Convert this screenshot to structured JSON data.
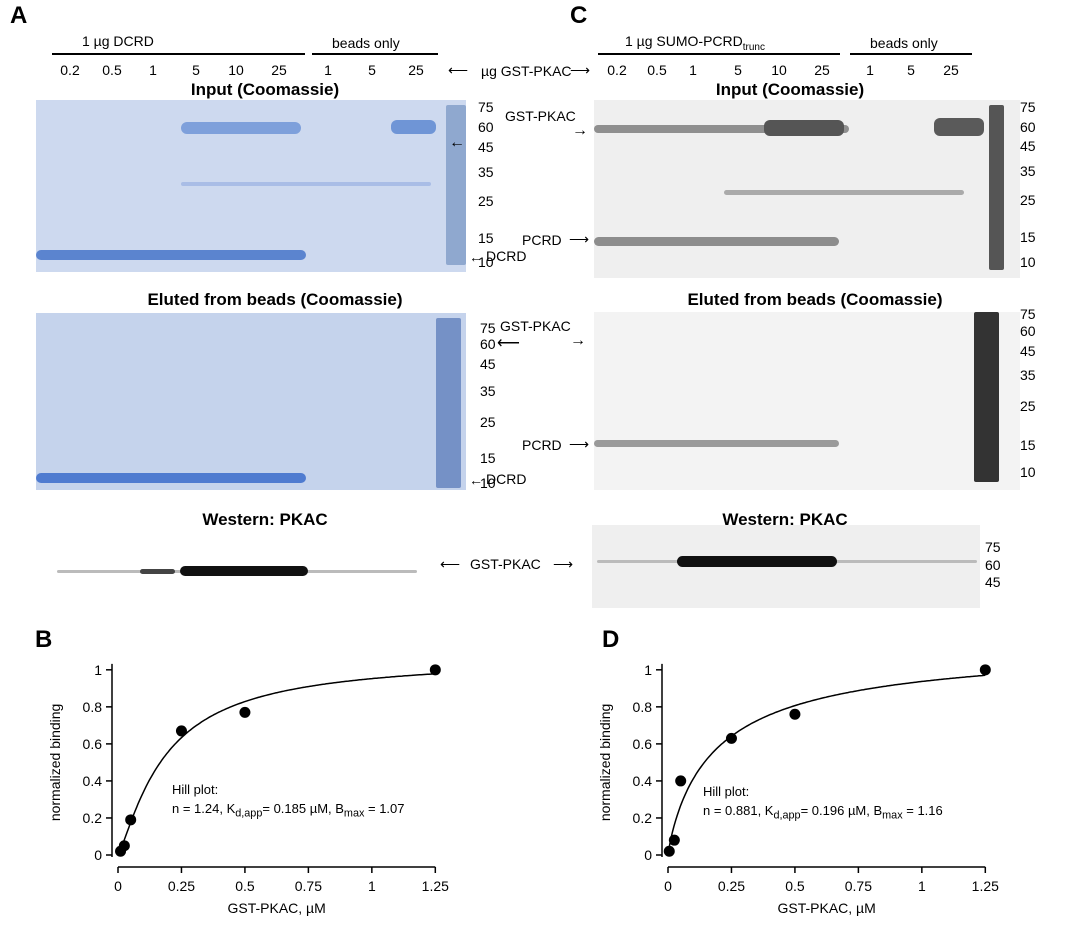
{
  "panels": {
    "A": {
      "label": "A",
      "group1": "1 µg DCRD",
      "group2": "beads only",
      "lanes": [
        "0.2",
        "0.5",
        "1",
        "5",
        "10",
        "25",
        "1",
        "5",
        "25"
      ],
      "lane_unit": "µg GST-PKAC",
      "input_title": "Input (Coomassie)",
      "eluted_title": "Eluted from beads (Coomassie)",
      "western_title": "Western: PKAC",
      "input_markers": [
        "75",
        "60",
        "45",
        "35",
        "25",
        "15",
        "10"
      ],
      "eluted_markers": [
        "75",
        "60",
        "45",
        "35",
        "25",
        "15",
        "10"
      ],
      "gst_pkac": "GST-PKAC",
      "dcrd": "DCRD",
      "western_band": "GST-PKAC"
    },
    "C": {
      "label": "C",
      "group1_main": "1 µg SUMO-PCRD",
      "group1_sub": "trunc",
      "group2": "beads only",
      "lanes": [
        "0.2",
        "0.5",
        "1",
        "5",
        "10",
        "25",
        "1",
        "5",
        "25"
      ],
      "input_title": "Input (Coomassie)",
      "eluted_title": "Eluted from beads (Coomassie)",
      "western_title": "Western: PKAC",
      "input_markers": [
        "75",
        "60",
        "45",
        "35",
        "25",
        "15",
        "10"
      ],
      "eluted_markers": [
        "75",
        "60",
        "45",
        "35",
        "25",
        "15",
        "10"
      ],
      "western_markers": [
        "75",
        "60",
        "45"
      ],
      "gst_pkac": "GST-PKAC",
      "pcrd": "PCRD"
    },
    "B": {
      "label": "B",
      "hill_title": "Hill plot:",
      "hill_n": "n = 1.24, K",
      "hill_kd_sub": "d,app",
      "hill_kd": "= 0.185 µM, B",
      "hill_bmax_sub": "max",
      "hill_bmax": " = 1.07"
    },
    "D": {
      "label": "D",
      "hill_title": "Hill plot:",
      "hill_n": "n = 0.881, K",
      "hill_kd_sub": "d,app",
      "hill_kd": "= 0.196 µM, B",
      "hill_bmax_sub": "max",
      "hill_bmax": " = 1.16"
    }
  },
  "chart_data": [
    {
      "type": "scatter",
      "panel": "B",
      "xlabel": "GST-PKAC, µM",
      "ylabel": "normalized binding",
      "xlim": [
        0,
        1.3
      ],
      "ylim": [
        0,
        1.08
      ],
      "xticks": [
        "0",
        "0.25",
        "0.5",
        "0.75",
        "1",
        "1.25"
      ],
      "yticks": [
        "0",
        "0.2",
        "0.4",
        "0.6",
        "0.8",
        "1"
      ],
      "x": [
        0.01,
        0.025,
        0.05,
        0.25,
        0.5,
        1.25
      ],
      "y": [
        0.02,
        0.05,
        0.19,
        0.67,
        0.77,
        1.0
      ],
      "fit": {
        "model": "hill",
        "n": 1.24,
        "kd": 0.185,
        "bmax": 1.07
      }
    },
    {
      "type": "scatter",
      "panel": "D",
      "xlabel": "GST-PKAC, µM",
      "ylabel": "normalized binding",
      "xlim": [
        0,
        1.3
      ],
      "ylim": [
        0,
        1.08
      ],
      "xticks": [
        "0",
        "0.25",
        "0.5",
        "0.75",
        "1",
        "1.25"
      ],
      "yticks": [
        "0",
        "0.2",
        "0.4",
        "0.6",
        "0.8",
        "1"
      ],
      "x": [
        0.005,
        0.025,
        0.05,
        0.25,
        0.5,
        1.25
      ],
      "y": [
        0.02,
        0.08,
        0.4,
        0.63,
        0.76,
        1.0
      ],
      "fit": {
        "model": "hill",
        "n": 0.881,
        "kd": 0.196,
        "bmax": 1.16
      }
    }
  ]
}
